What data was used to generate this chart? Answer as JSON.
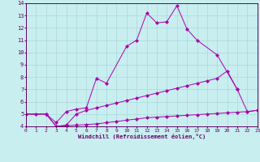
{
  "line1_x": [
    0,
    1,
    2,
    3,
    4,
    5,
    6,
    7,
    8,
    10,
    11,
    12,
    13,
    14,
    15,
    16,
    17,
    19,
    21
  ],
  "line1_y": [
    5.0,
    5.0,
    5.0,
    4.3,
    5.2,
    5.4,
    5.5,
    7.9,
    7.5,
    10.5,
    11.0,
    13.2,
    12.4,
    12.5,
    13.8,
    11.9,
    11.0,
    9.8,
    7.0
  ],
  "line2_x": [
    0,
    2,
    3,
    4,
    5,
    6,
    7,
    8,
    9,
    10,
    11,
    12,
    13,
    14,
    15,
    16,
    17,
    18,
    19,
    20,
    21,
    22,
    23
  ],
  "line2_y": [
    5.0,
    5.0,
    4.0,
    4.1,
    5.0,
    5.3,
    5.5,
    5.7,
    5.9,
    6.1,
    6.3,
    6.5,
    6.7,
    6.9,
    7.1,
    7.3,
    7.5,
    7.7,
    7.9,
    8.5,
    7.0,
    5.2,
    5.3
  ],
  "line3_x": [
    0,
    2,
    3,
    4,
    5,
    6,
    7,
    8,
    9,
    10,
    11,
    12,
    13,
    14,
    15,
    16,
    17,
    18,
    19,
    20,
    21,
    22,
    23
  ],
  "line3_y": [
    5.0,
    5.0,
    4.0,
    4.05,
    4.1,
    4.15,
    4.2,
    4.3,
    4.4,
    4.5,
    4.6,
    4.7,
    4.75,
    4.8,
    4.85,
    4.9,
    4.95,
    5.0,
    5.05,
    5.1,
    5.15,
    5.2,
    5.3
  ],
  "line_color": "#aa00aa",
  "bg_color": "#c8eef0",
  "grid_color": "#aad8da",
  "xlabel": "Windchill (Refroidissement éolien,°C)",
  "xlim": [
    0,
    23
  ],
  "ylim": [
    4,
    14
  ],
  "xticks": [
    0,
    1,
    2,
    3,
    4,
    5,
    6,
    7,
    8,
    9,
    10,
    11,
    12,
    13,
    14,
    15,
    16,
    17,
    18,
    19,
    20,
    21,
    22,
    23
  ],
  "yticks": [
    4,
    5,
    6,
    7,
    8,
    9,
    10,
    11,
    12,
    13,
    14
  ],
  "markersize": 2.5
}
